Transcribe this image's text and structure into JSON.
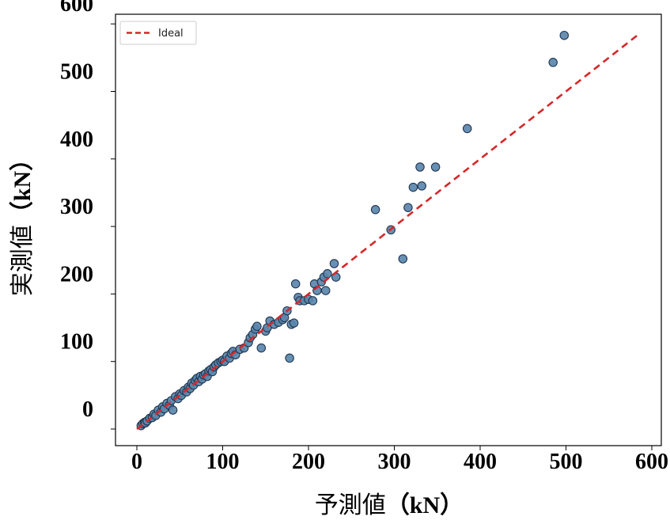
{
  "chart_data": {
    "type": "scatter",
    "xlabel": "予測値",
    "xlabel_unit": "（kN）",
    "ylabel": "実測値",
    "ylabel_unit": "（kN）",
    "xticks": [
      "0",
      "100",
      "200",
      "300",
      "400",
      "500",
      "600"
    ],
    "yticks": [
      "0",
      "100",
      "200",
      "300",
      "400",
      "500",
      "600"
    ],
    "xlim": [
      -15,
      615
    ],
    "ylim": [
      -15,
      615
    ],
    "grid": false,
    "legend": {
      "placement": "top-left",
      "entries": [
        "Ideal"
      ]
    },
    "colors": {
      "points": "#5b87ad",
      "point_edge": "#1f3550",
      "ideal_line": "#d62728",
      "frame": "#000000"
    },
    "ideal_line": {
      "name": "Ideal",
      "x": [
        0,
        585
      ],
      "y": [
        0,
        585
      ]
    },
    "points": [
      {
        "x": 5,
        "y": 5
      },
      {
        "x": 7,
        "y": 8
      },
      {
        "x": 9,
        "y": 10
      },
      {
        "x": 10,
        "y": 9
      },
      {
        "x": 12,
        "y": 12
      },
      {
        "x": 15,
        "y": 16
      },
      {
        "x": 18,
        "y": 17
      },
      {
        "x": 20,
        "y": 22
      },
      {
        "x": 22,
        "y": 20
      },
      {
        "x": 25,
        "y": 28
      },
      {
        "x": 28,
        "y": 25
      },
      {
        "x": 30,
        "y": 33
      },
      {
        "x": 32,
        "y": 30
      },
      {
        "x": 35,
        "y": 38
      },
      {
        "x": 38,
        "y": 35
      },
      {
        "x": 40,
        "y": 42
      },
      {
        "x": 42,
        "y": 28
      },
      {
        "x": 45,
        "y": 48
      },
      {
        "x": 48,
        "y": 45
      },
      {
        "x": 50,
        "y": 52
      },
      {
        "x": 52,
        "y": 50
      },
      {
        "x": 55,
        "y": 57
      },
      {
        "x": 58,
        "y": 55
      },
      {
        "x": 60,
        "y": 62
      },
      {
        "x": 62,
        "y": 60
      },
      {
        "x": 64,
        "y": 68
      },
      {
        "x": 66,
        "y": 65
      },
      {
        "x": 68,
        "y": 72
      },
      {
        "x": 70,
        "y": 75
      },
      {
        "x": 72,
        "y": 70
      },
      {
        "x": 74,
        "y": 78
      },
      {
        "x": 76,
        "y": 74
      },
      {
        "x": 78,
        "y": 80
      },
      {
        "x": 80,
        "y": 82
      },
      {
        "x": 82,
        "y": 78
      },
      {
        "x": 84,
        "y": 86
      },
      {
        "x": 86,
        "y": 88
      },
      {
        "x": 88,
        "y": 85
      },
      {
        "x": 90,
        "y": 92
      },
      {
        "x": 92,
        "y": 95
      },
      {
        "x": 95,
        "y": 98
      },
      {
        "x": 98,
        "y": 100
      },
      {
        "x": 100,
        "y": 102
      },
      {
        "x": 102,
        "y": 100
      },
      {
        "x": 105,
        "y": 108
      },
      {
        "x": 108,
        "y": 105
      },
      {
        "x": 110,
        "y": 112
      },
      {
        "x": 112,
        "y": 115
      },
      {
        "x": 115,
        "y": 110
      },
      {
        "x": 120,
        "y": 118
      },
      {
        "x": 125,
        "y": 120
      },
      {
        "x": 130,
        "y": 128
      },
      {
        "x": 132,
        "y": 135
      },
      {
        "x": 135,
        "y": 140
      },
      {
        "x": 138,
        "y": 148
      },
      {
        "x": 140,
        "y": 152
      },
      {
        "x": 145,
        "y": 120
      },
      {
        "x": 150,
        "y": 145
      },
      {
        "x": 152,
        "y": 150
      },
      {
        "x": 155,
        "y": 160
      },
      {
        "x": 160,
        "y": 155
      },
      {
        "x": 165,
        "y": 158
      },
      {
        "x": 170,
        "y": 162
      },
      {
        "x": 172,
        "y": 165
      },
      {
        "x": 175,
        "y": 175
      },
      {
        "x": 178,
        "y": 105
      },
      {
        "x": 180,
        "y": 155
      },
      {
        "x": 183,
        "y": 157
      },
      {
        "x": 185,
        "y": 215
      },
      {
        "x": 188,
        "y": 195
      },
      {
        "x": 190,
        "y": 190
      },
      {
        "x": 195,
        "y": 190
      },
      {
        "x": 200,
        "y": 192
      },
      {
        "x": 205,
        "y": 190
      },
      {
        "x": 207,
        "y": 215
      },
      {
        "x": 210,
        "y": 205
      },
      {
        "x": 215,
        "y": 218
      },
      {
        "x": 218,
        "y": 225
      },
      {
        "x": 220,
        "y": 205
      },
      {
        "x": 222,
        "y": 230
      },
      {
        "x": 230,
        "y": 245
      },
      {
        "x": 232,
        "y": 225
      },
      {
        "x": 278,
        "y": 325
      },
      {
        "x": 296,
        "y": 295
      },
      {
        "x": 310,
        "y": 252
      },
      {
        "x": 316,
        "y": 328
      },
      {
        "x": 322,
        "y": 358
      },
      {
        "x": 330,
        "y": 388
      },
      {
        "x": 332,
        "y": 360
      },
      {
        "x": 348,
        "y": 388
      },
      {
        "x": 385,
        "y": 445
      },
      {
        "x": 485,
        "y": 543
      },
      {
        "x": 498,
        "y": 583
      }
    ]
  }
}
